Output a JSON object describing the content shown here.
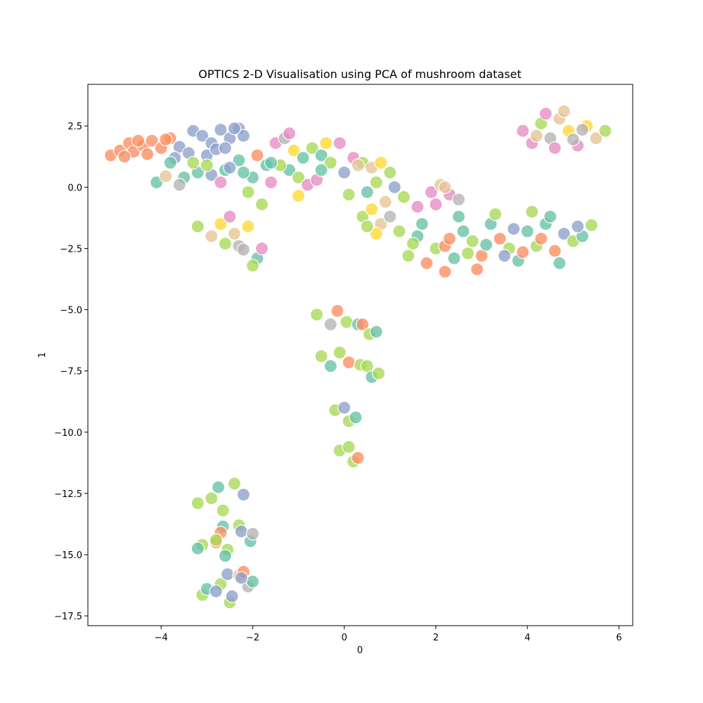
{
  "chart_data": {
    "type": "scatter",
    "title": "OPTICS 2-D Visualisation using PCA of mushroom dataset",
    "xlabel": "0",
    "ylabel": "1",
    "xlim": [
      -5.6,
      6.3
    ],
    "ylim": [
      -17.9,
      4.2
    ],
    "grid": false,
    "legend": "none",
    "x_ticks": [
      {
        "value": -4,
        "label": "−4"
      },
      {
        "value": -2,
        "label": "−2"
      },
      {
        "value": 0,
        "label": "0"
      },
      {
        "value": 2,
        "label": "2"
      },
      {
        "value": 4,
        "label": "4"
      },
      {
        "value": 6,
        "label": "6"
      }
    ],
    "y_ticks": [
      {
        "value": 2.5,
        "label": "2.5"
      },
      {
        "value": 0,
        "label": "0.0"
      },
      {
        "value": -2.5,
        "label": "−2.5"
      },
      {
        "value": -5,
        "label": "−5.0"
      },
      {
        "value": -7.5,
        "label": "−7.5"
      },
      {
        "value": -10,
        "label": "−10.0"
      },
      {
        "value": -12.5,
        "label": "−12.5"
      },
      {
        "value": -15,
        "label": "−15.0"
      },
      {
        "value": -17.5,
        "label": "−17.5"
      }
    ],
    "palette": [
      "#66c2a5",
      "#fc8d62",
      "#8da0cb",
      "#e78ac3",
      "#a6d854",
      "#ffd92f",
      "#e5c494",
      "#b3b3b3"
    ],
    "points": [
      {
        "x": -5.1,
        "y": 1.3,
        "c": 1
      },
      {
        "x": -4.9,
        "y": 1.5,
        "c": 1
      },
      {
        "x": -4.7,
        "y": 1.8,
        "c": 1
      },
      {
        "x": -4.6,
        "y": 1.45,
        "c": 1
      },
      {
        "x": -4.4,
        "y": 1.7,
        "c": 1
      },
      {
        "x": -4.2,
        "y": 1.9,
        "c": 1
      },
      {
        "x": -4.0,
        "y": 1.6,
        "c": 1
      },
      {
        "x": -3.8,
        "y": 2.0,
        "c": 1
      },
      {
        "x": -4.8,
        "y": 1.25,
        "c": 1
      },
      {
        "x": -4.3,
        "y": 1.35,
        "c": 1
      },
      {
        "x": -3.9,
        "y": 1.95,
        "c": 1
      },
      {
        "x": -4.5,
        "y": 1.9,
        "c": 1
      },
      {
        "x": -3.6,
        "y": 1.65,
        "c": 2
      },
      {
        "x": -3.3,
        "y": 2.3,
        "c": 2
      },
      {
        "x": -3.1,
        "y": 2.1,
        "c": 2
      },
      {
        "x": -2.9,
        "y": 1.8,
        "c": 2
      },
      {
        "x": -2.7,
        "y": 2.35,
        "c": 2
      },
      {
        "x": -2.5,
        "y": 2.0,
        "c": 2
      },
      {
        "x": -2.3,
        "y": 2.4,
        "c": 2
      },
      {
        "x": -3.4,
        "y": 1.4,
        "c": 2
      },
      {
        "x": -3.0,
        "y": 1.3,
        "c": 2
      },
      {
        "x": -2.8,
        "y": 1.55,
        "c": 2
      },
      {
        "x": -2.6,
        "y": 1.6,
        "c": 2
      },
      {
        "x": -2.2,
        "y": 2.1,
        "c": 2
      },
      {
        "x": -3.7,
        "y": 1.2,
        "c": 2
      },
      {
        "x": -2.4,
        "y": 2.4,
        "c": 2
      },
      {
        "x": -3.8,
        "y": 1.0,
        "c": 0
      },
      {
        "x": -4.1,
        "y": 0.2,
        "c": 0
      },
      {
        "x": -3.5,
        "y": 0.4,
        "c": 0
      },
      {
        "x": -3.2,
        "y": 0.6,
        "c": 0
      },
      {
        "x": -2.9,
        "y": 0.5,
        "c": 2
      },
      {
        "x": -2.6,
        "y": 0.7,
        "c": 0
      },
      {
        "x": -2.3,
        "y": 1.1,
        "c": 0
      },
      {
        "x": -2.0,
        "y": 0.4,
        "c": 0
      },
      {
        "x": -1.8,
        "y": -0.7,
        "c": 4
      },
      {
        "x": -2.1,
        "y": -0.2,
        "c": 4
      },
      {
        "x": -1.6,
        "y": 0.2,
        "c": 3
      },
      {
        "x": -3.9,
        "y": 0.45,
        "c": 6
      },
      {
        "x": -3.6,
        "y": 0.1,
        "c": 7
      },
      {
        "x": -3.0,
        "y": 0.9,
        "c": 4
      },
      {
        "x": -2.7,
        "y": 0.2,
        "c": 3
      },
      {
        "x": -2.5,
        "y": 0.8,
        "c": 2
      },
      {
        "x": -2.2,
        "y": 0.6,
        "c": 0
      },
      {
        "x": -1.9,
        "y": 1.3,
        "c": 1
      },
      {
        "x": -1.7,
        "y": 0.9,
        "c": 0
      },
      {
        "x": -3.3,
        "y": 1.0,
        "c": 4
      },
      {
        "x": -1.5,
        "y": 1.8,
        "c": 3
      },
      {
        "x": -1.3,
        "y": 2.0,
        "c": 7
      },
      {
        "x": -1.1,
        "y": 1.5,
        "c": 5
      },
      {
        "x": -0.9,
        "y": 1.2,
        "c": 0
      },
      {
        "x": -0.7,
        "y": 1.6,
        "c": 4
      },
      {
        "x": -0.5,
        "y": 1.3,
        "c": 0
      },
      {
        "x": -1.2,
        "y": 0.7,
        "c": 0
      },
      {
        "x": -1.0,
        "y": 0.4,
        "c": 4
      },
      {
        "x": -0.8,
        "y": 0.1,
        "c": 3
      },
      {
        "x": -1.4,
        "y": 0.9,
        "c": 4
      },
      {
        "x": -0.6,
        "y": 0.3,
        "c": 3
      },
      {
        "x": -1.0,
        "y": -0.35,
        "c": 5
      },
      {
        "x": -1.6,
        "y": 1.0,
        "c": 0
      },
      {
        "x": -1.2,
        "y": 2.2,
        "c": 3
      },
      {
        "x": -0.4,
        "y": 1.8,
        "c": 5
      },
      {
        "x": -0.3,
        "y": 1.0,
        "c": 4
      },
      {
        "x": -0.5,
        "y": 0.7,
        "c": 0
      },
      {
        "x": -0.1,
        "y": 1.8,
        "c": 3
      },
      {
        "x": 0.0,
        "y": 0.6,
        "c": 2
      },
      {
        "x": 0.2,
        "y": 1.2,
        "c": 3
      },
      {
        "x": 0.4,
        "y": 1.0,
        "c": 4
      },
      {
        "x": 0.6,
        "y": 0.8,
        "c": 6
      },
      {
        "x": 0.8,
        "y": 1.0,
        "c": 5
      },
      {
        "x": 1.0,
        "y": 0.6,
        "c": 4
      },
      {
        "x": 0.3,
        "y": 0.9,
        "c": 6
      },
      {
        "x": 0.1,
        "y": -0.3,
        "c": 4
      },
      {
        "x": 0.5,
        "y": -0.2,
        "c": 0
      },
      {
        "x": 1.1,
        "y": 0.0,
        "c": 2
      },
      {
        "x": 0.7,
        "y": 0.2,
        "c": 4
      },
      {
        "x": 1.3,
        "y": -0.4,
        "c": 4
      },
      {
        "x": 0.4,
        "y": -1.2,
        "c": 4
      },
      {
        "x": 0.6,
        "y": -0.9,
        "c": 5
      },
      {
        "x": 0.8,
        "y": -1.5,
        "c": 6
      },
      {
        "x": 0.7,
        "y": -1.9,
        "c": 5
      },
      {
        "x": 1.0,
        "y": -1.2,
        "c": 7
      },
      {
        "x": 1.2,
        "y": -1.8,
        "c": 4
      },
      {
        "x": 0.9,
        "y": -0.6,
        "c": 6
      },
      {
        "x": 0.5,
        "y": -1.6,
        "c": 4
      },
      {
        "x": 1.6,
        "y": -0.8,
        "c": 3
      },
      {
        "x": 1.9,
        "y": -0.2,
        "c": 3
      },
      {
        "x": 2.1,
        "y": 0.1,
        "c": 6
      },
      {
        "x": 2.3,
        "y": -0.3,
        "c": 3
      },
      {
        "x": 2.5,
        "y": -0.5,
        "c": 7
      },
      {
        "x": 2.0,
        "y": -0.7,
        "c": 3
      },
      {
        "x": 2.2,
        "y": 0.0,
        "c": 6
      },
      {
        "x": 1.4,
        "y": -2.8,
        "c": 4
      },
      {
        "x": 1.6,
        "y": -2.0,
        "c": 0
      },
      {
        "x": 1.8,
        "y": -3.1,
        "c": 1
      },
      {
        "x": 2.0,
        "y": -2.5,
        "c": 4
      },
      {
        "x": 2.2,
        "y": -2.4,
        "c": 1
      },
      {
        "x": 2.4,
        "y": -2.9,
        "c": 0
      },
      {
        "x": 2.6,
        "y": -1.8,
        "c": 0
      },
      {
        "x": 2.8,
        "y": -2.2,
        "c": 4
      },
      {
        "x": 3.0,
        "y": -2.8,
        "c": 1
      },
      {
        "x": 3.2,
        "y": -1.5,
        "c": 0
      },
      {
        "x": 3.4,
        "y": -2.1,
        "c": 1
      },
      {
        "x": 3.6,
        "y": -2.5,
        "c": 4
      },
      {
        "x": 3.8,
        "y": -3.0,
        "c": 0
      },
      {
        "x": 4.0,
        "y": -1.8,
        "c": 0
      },
      {
        "x": 4.2,
        "y": -2.4,
        "c": 4
      },
      {
        "x": 4.4,
        "y": -1.5,
        "c": 0
      },
      {
        "x": 4.6,
        "y": -2.6,
        "c": 1
      },
      {
        "x": 4.8,
        "y": -1.9,
        "c": 2
      },
      {
        "x": 5.0,
        "y": -2.2,
        "c": 4
      },
      {
        "x": 5.2,
        "y": -2.0,
        "c": 0
      },
      {
        "x": 5.4,
        "y": -1.55,
        "c": 4
      },
      {
        "x": 3.9,
        "y": -2.65,
        "c": 1
      },
      {
        "x": 3.5,
        "y": -2.8,
        "c": 2
      },
      {
        "x": 2.9,
        "y": -3.35,
        "c": 1
      },
      {
        "x": 2.2,
        "y": -3.45,
        "c": 1
      },
      {
        "x": 1.7,
        "y": -1.5,
        "c": 0
      },
      {
        "x": 2.5,
        "y": -1.2,
        "c": 0
      },
      {
        "x": 3.3,
        "y": -1.1,
        "c": 4
      },
      {
        "x": 4.1,
        "y": -1.0,
        "c": 4
      },
      {
        "x": 4.7,
        "y": -3.1,
        "c": 0
      },
      {
        "x": 3.1,
        "y": -2.35,
        "c": 0
      },
      {
        "x": 2.7,
        "y": -2.7,
        "c": 4
      },
      {
        "x": 4.5,
        "y": -1.2,
        "c": 0
      },
      {
        "x": 1.5,
        "y": -2.3,
        "c": 4
      },
      {
        "x": 5.1,
        "y": -1.6,
        "c": 2
      },
      {
        "x": 2.3,
        "y": -2.1,
        "c": 1
      },
      {
        "x": 3.7,
        "y": -1.7,
        "c": 2
      },
      {
        "x": 4.3,
        "y": -2.1,
        "c": 1
      },
      {
        "x": 3.9,
        "y": 2.3,
        "c": 3
      },
      {
        "x": 4.1,
        "y": 1.8,
        "c": 3
      },
      {
        "x": 4.3,
        "y": 2.6,
        "c": 4
      },
      {
        "x": 4.5,
        "y": 2.0,
        "c": 7
      },
      {
        "x": 4.7,
        "y": 2.8,
        "c": 6
      },
      {
        "x": 4.9,
        "y": 2.3,
        "c": 5
      },
      {
        "x": 5.1,
        "y": 1.7,
        "c": 3
      },
      {
        "x": 5.3,
        "y": 2.5,
        "c": 5
      },
      {
        "x": 5.5,
        "y": 2.0,
        "c": 6
      },
      {
        "x": 4.6,
        "y": 1.6,
        "c": 3
      },
      {
        "x": 4.2,
        "y": 2.1,
        "c": 6
      },
      {
        "x": 4.8,
        "y": 3.1,
        "c": 6
      },
      {
        "x": 5.0,
        "y": 1.95,
        "c": 7
      },
      {
        "x": 5.7,
        "y": 2.3,
        "c": 4
      },
      {
        "x": 4.4,
        "y": 3.0,
        "c": 3
      },
      {
        "x": 5.2,
        "y": 2.35,
        "c": 7
      },
      {
        "x": -3.2,
        "y": -1.6,
        "c": 4
      },
      {
        "x": -2.9,
        "y": -2.0,
        "c": 6
      },
      {
        "x": -2.7,
        "y": -1.5,
        "c": 5
      },
      {
        "x": -2.5,
        "y": -1.2,
        "c": 3
      },
      {
        "x": -2.3,
        "y": -2.4,
        "c": 7
      },
      {
        "x": -2.1,
        "y": -1.6,
        "c": 5
      },
      {
        "x": -1.9,
        "y": -2.9,
        "c": 0
      },
      {
        "x": -2.4,
        "y": -1.9,
        "c": 6
      },
      {
        "x": -1.8,
        "y": -2.5,
        "c": 3
      },
      {
        "x": -2.0,
        "y": -3.2,
        "c": 4
      },
      {
        "x": -2.6,
        "y": -2.3,
        "c": 4
      },
      {
        "x": -2.2,
        "y": -2.55,
        "c": 7
      },
      {
        "x": -0.6,
        "y": -5.2,
        "c": 4
      },
      {
        "x": -0.3,
        "y": -5.6,
        "c": 7
      },
      {
        "x": -0.15,
        "y": -5.05,
        "c": 1
      },
      {
        "x": 0.05,
        "y": -5.5,
        "c": 4
      },
      {
        "x": 0.3,
        "y": -5.6,
        "c": 0
      },
      {
        "x": 0.4,
        "y": -5.6,
        "c": 1
      },
      {
        "x": 0.55,
        "y": -6.0,
        "c": 4
      },
      {
        "x": 0.7,
        "y": -5.9,
        "c": 0
      },
      {
        "x": -0.5,
        "y": -6.9,
        "c": 4
      },
      {
        "x": -0.3,
        "y": -7.3,
        "c": 0
      },
      {
        "x": -0.1,
        "y": -6.75,
        "c": 4
      },
      {
        "x": 0.1,
        "y": -7.15,
        "c": 1
      },
      {
        "x": 0.35,
        "y": -7.25,
        "c": 4
      },
      {
        "x": 0.5,
        "y": -7.3,
        "c": 4
      },
      {
        "x": 0.6,
        "y": -7.75,
        "c": 0
      },
      {
        "x": 0.75,
        "y": -7.6,
        "c": 4
      },
      {
        "x": -0.2,
        "y": -9.1,
        "c": 4
      },
      {
        "x": 0.0,
        "y": -9.0,
        "c": 2
      },
      {
        "x": 0.1,
        "y": -9.55,
        "c": 4
      },
      {
        "x": 0.25,
        "y": -9.4,
        "c": 0
      },
      {
        "x": -0.1,
        "y": -10.75,
        "c": 4
      },
      {
        "x": 0.1,
        "y": -10.6,
        "c": 4
      },
      {
        "x": 0.2,
        "y": -11.2,
        "c": 4
      },
      {
        "x": 0.3,
        "y": -11.05,
        "c": 1
      },
      {
        "x": -3.2,
        "y": -12.9,
        "c": 4
      },
      {
        "x": -2.9,
        "y": -12.7,
        "c": 4
      },
      {
        "x": -2.75,
        "y": -12.25,
        "c": 0
      },
      {
        "x": -2.65,
        "y": -13.2,
        "c": 4
      },
      {
        "x": -2.4,
        "y": -12.1,
        "c": 4
      },
      {
        "x": -2.2,
        "y": -12.55,
        "c": 2
      },
      {
        "x": -3.1,
        "y": -14.6,
        "c": 4
      },
      {
        "x": -3.2,
        "y": -14.75,
        "c": 0
      },
      {
        "x": -2.8,
        "y": -14.5,
        "c": 1
      },
      {
        "x": -2.65,
        "y": -13.85,
        "c": 0
      },
      {
        "x": -2.7,
        "y": -14.1,
        "c": 1
      },
      {
        "x": -2.55,
        "y": -14.8,
        "c": 4
      },
      {
        "x": -2.3,
        "y": -13.8,
        "c": 4
      },
      {
        "x": -2.25,
        "y": -14.05,
        "c": 2
      },
      {
        "x": -2.05,
        "y": -14.45,
        "c": 0
      },
      {
        "x": -2.0,
        "y": -14.15,
        "c": 7
      },
      {
        "x": -2.6,
        "y": -15.05,
        "c": 0
      },
      {
        "x": -2.8,
        "y": -14.4,
        "c": 4
      },
      {
        "x": -3.1,
        "y": -16.65,
        "c": 4
      },
      {
        "x": -3.0,
        "y": -16.4,
        "c": 0
      },
      {
        "x": -2.7,
        "y": -16.2,
        "c": 4
      },
      {
        "x": -2.55,
        "y": -15.8,
        "c": 2
      },
      {
        "x": -2.5,
        "y": -16.95,
        "c": 4
      },
      {
        "x": -2.45,
        "y": -16.7,
        "c": 2
      },
      {
        "x": -2.3,
        "y": -15.85,
        "c": 6
      },
      {
        "x": -2.2,
        "y": -15.7,
        "c": 1
      },
      {
        "x": -2.1,
        "y": -16.3,
        "c": 7
      },
      {
        "x": -2.0,
        "y": -16.1,
        "c": 0
      },
      {
        "x": -2.8,
        "y": -16.5,
        "c": 2
      },
      {
        "x": -2.25,
        "y": -15.95,
        "c": 2
      }
    ]
  }
}
